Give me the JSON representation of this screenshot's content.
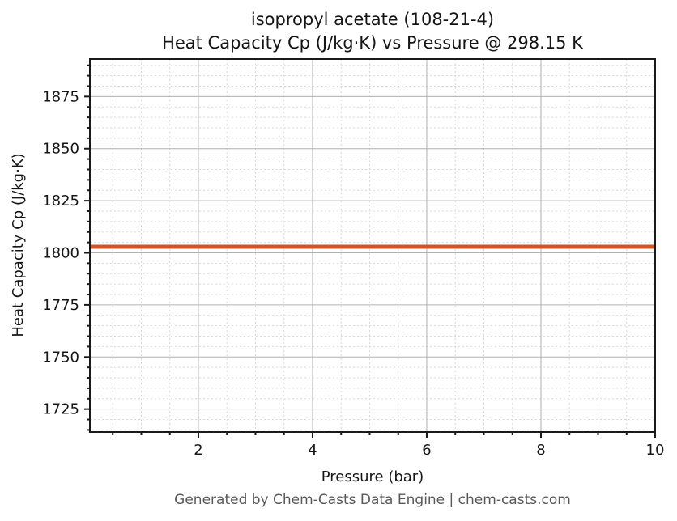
{
  "figure": {
    "title_line1": "isopropyl acetate (108-21-4)",
    "title_line2": "Heat Capacity Cp (J/kg·K) vs Pressure @ 298.15 K",
    "footer": "Generated by Chem-Casts Data Engine | chem-casts.com"
  },
  "chart_data": {
    "type": "line",
    "title": "isopropyl acetate (108-21-4)",
    "subtitle": "Heat Capacity Cp (J/kg·K) vs Pressure @ 298.15 K",
    "xlabel": "Pressure (bar)",
    "ylabel": "Heat Capacity Cp (J/kg·K)",
    "xlim": [
      0.1,
      10
    ],
    "ylim": [
      1714,
      1893
    ],
    "x_major_ticks": [
      2,
      4,
      6,
      8,
      10
    ],
    "x_minor_step": 0.5,
    "y_major_ticks": [
      1725,
      1750,
      1775,
      1800,
      1825,
      1850,
      1875
    ],
    "y_minor_step": 5,
    "grid": {
      "major": true,
      "minor": true
    },
    "legend_position": "none",
    "series": [
      {
        "name": "Heat Capacity Cp",
        "color": "#d0551e",
        "linewidth": 5,
        "x": [
          0.1,
          10
        ],
        "y": [
          1802.9,
          1802.9
        ]
      }
    ],
    "footer": "Generated by Chem-Casts Data Engine | chem-casts.com"
  },
  "colors": {
    "background": "#ffffff",
    "spine": "#1a1a1a",
    "grid_major": "#b0b0b0",
    "grid_minor": "#d9d9d9",
    "text": "#161616",
    "footer_text": "#585858",
    "series": "#d0551e"
  }
}
